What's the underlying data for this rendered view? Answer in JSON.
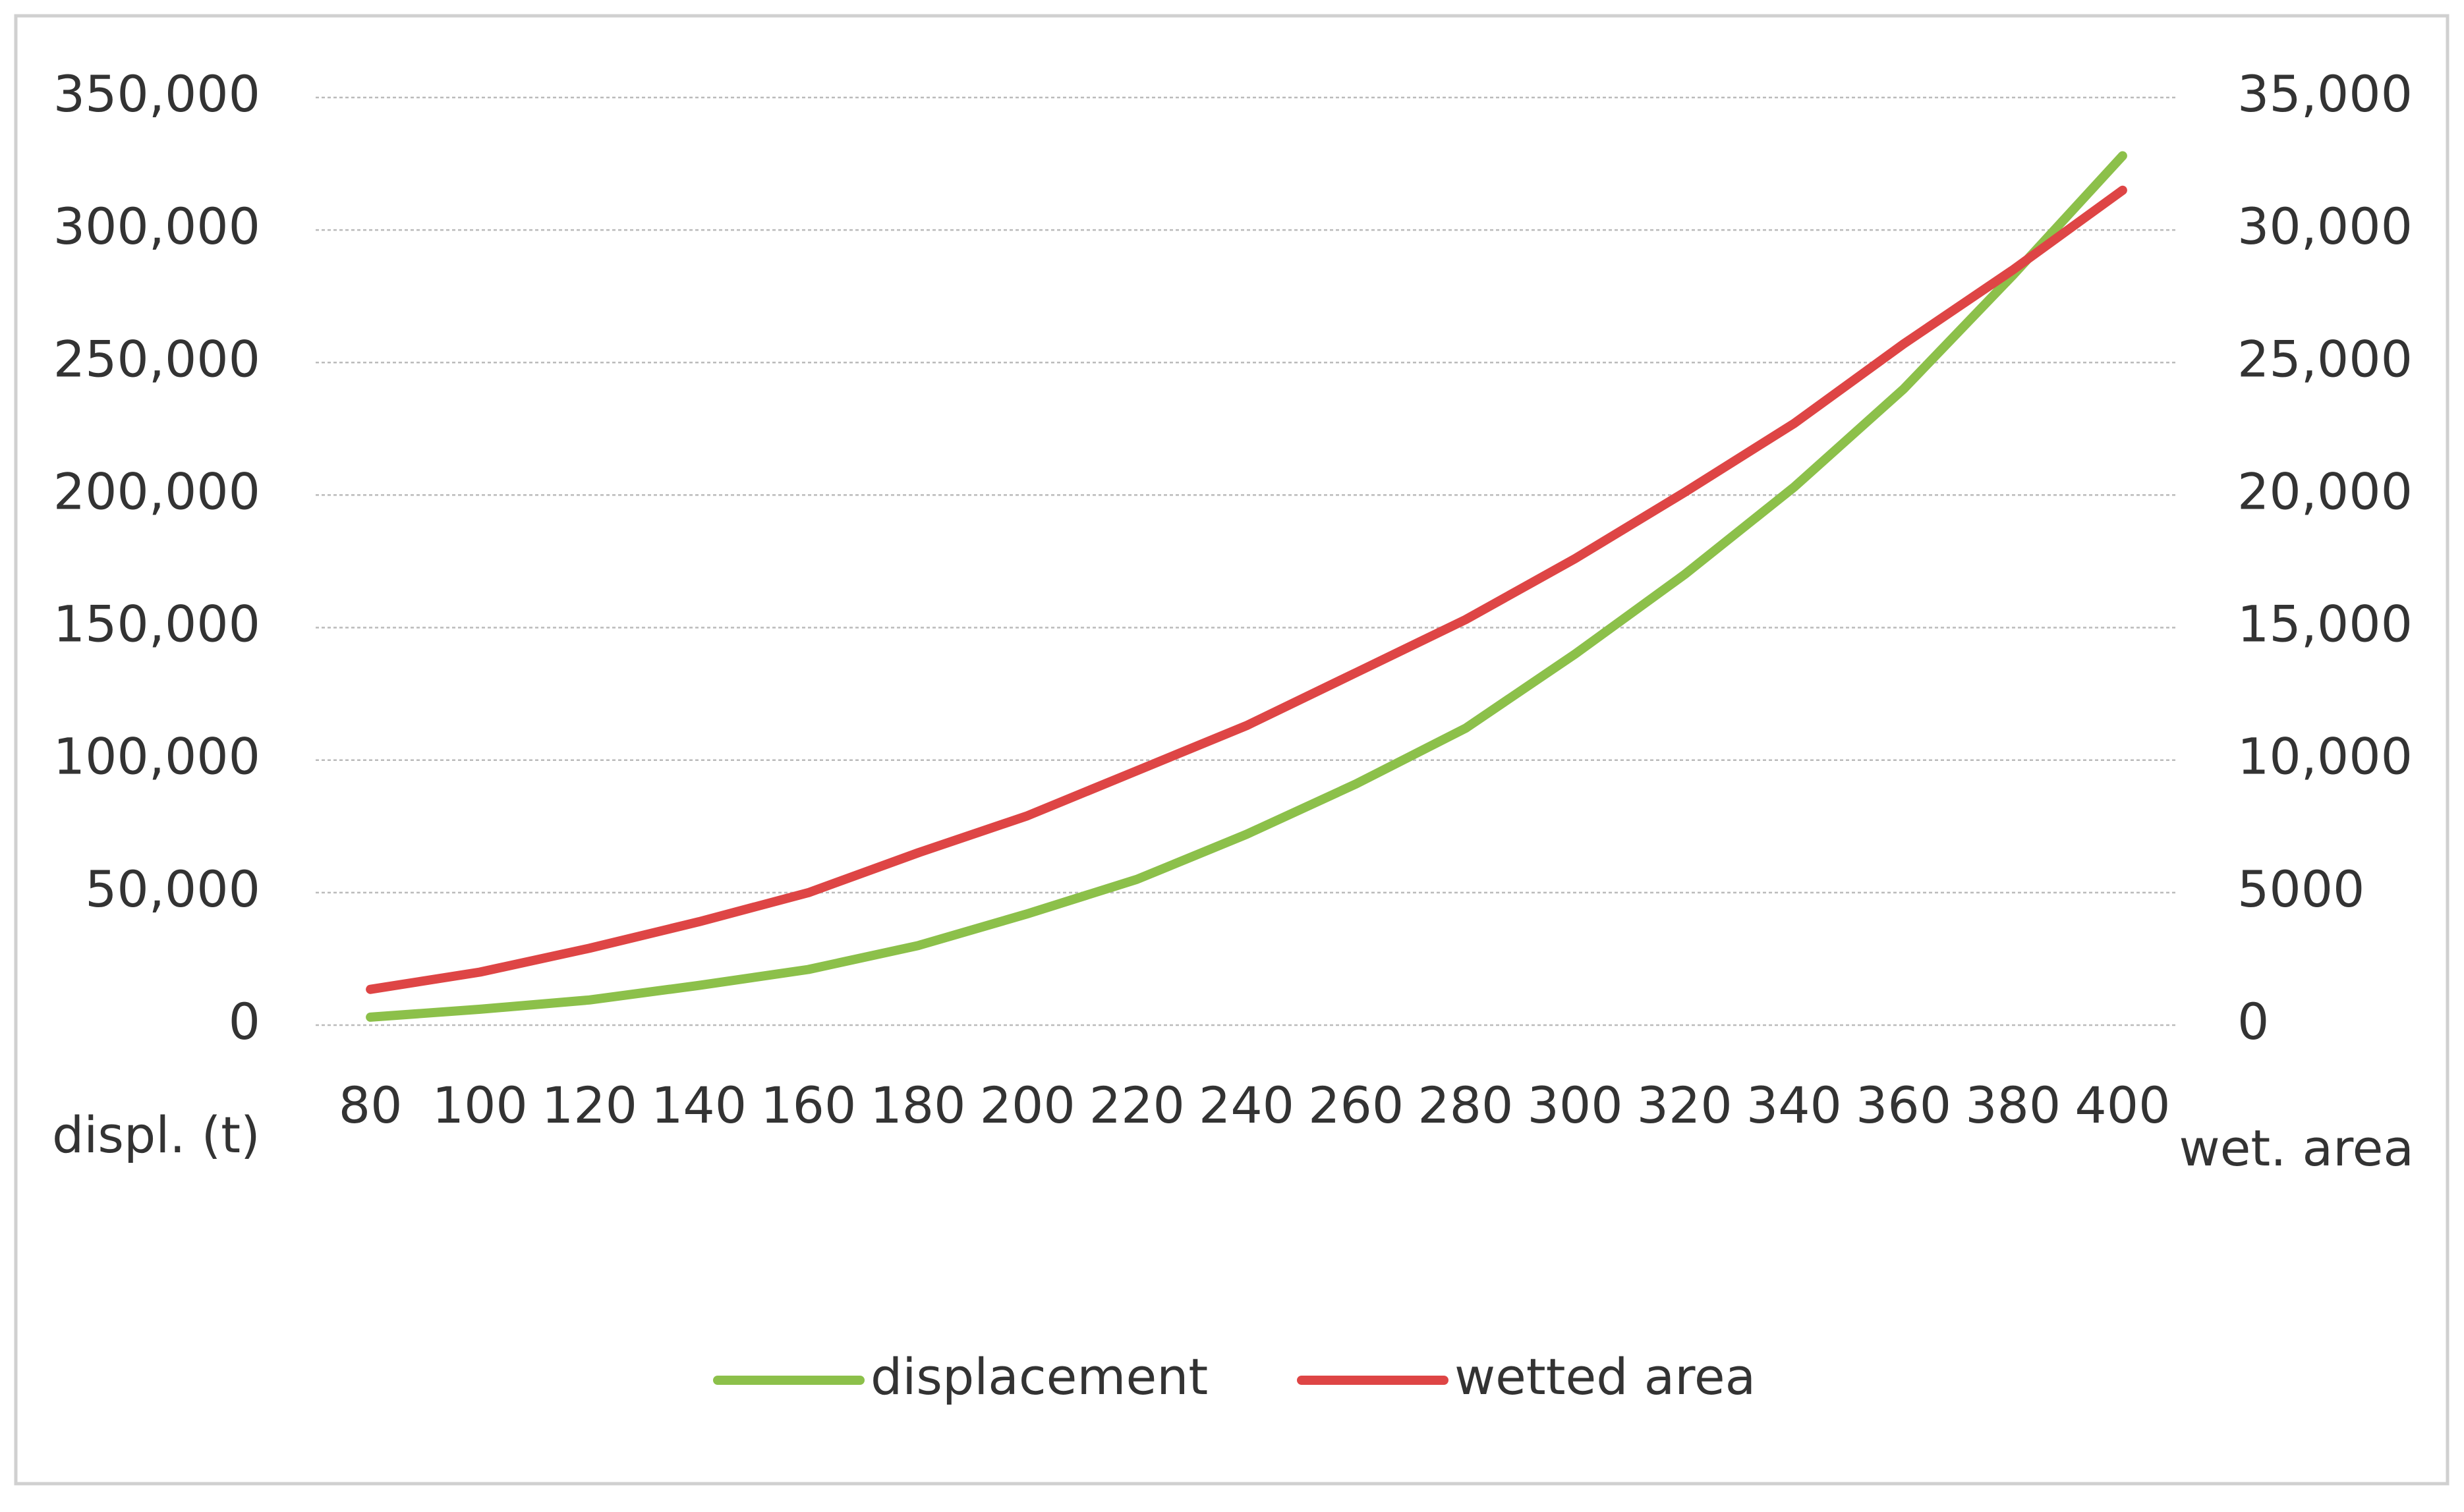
{
  "chart_data": {
    "type": "line",
    "categories": [
      "80",
      "100",
      "120",
      "140",
      "160",
      "180",
      "200",
      "220",
      "240",
      "260",
      "280",
      "300",
      "320",
      "340",
      "360",
      "380",
      "400"
    ],
    "series": [
      {
        "name": "displacement",
        "color": "#8cc04a",
        "axis": "y",
        "values": [
          3000,
          6000,
          9500,
          15000,
          21000,
          30000,
          42000,
          55000,
          72000,
          91000,
          112000,
          140000,
          170000,
          203000,
          240000,
          283000,
          328000
        ]
      },
      {
        "name": "wetted area",
        "color": "#de4545",
        "axis": "y2",
        "values": [
          1350,
          2000,
          2900,
          3900,
          5000,
          6500,
          7900,
          9600,
          11300,
          13300,
          15300,
          17600,
          20100,
          22700,
          25700,
          28500,
          31500
        ]
      }
    ],
    "y_label": "displ. (t)",
    "y2_label": "wet. area",
    "ylim": [
      0,
      350000
    ],
    "yticks": [
      0,
      {
        "value": 50000,
        "label": "50,000"
      },
      {
        "value": 100000,
        "label": "100,000"
      },
      {
        "value": 150000,
        "label": "150,000"
      },
      {
        "value": 200000,
        "label": "200,000"
      },
      {
        "value": 250000,
        "label": "250,000"
      },
      {
        "value": 300000,
        "label": "300,000"
      },
      {
        "value": 350000,
        "label": "350,000"
      }
    ],
    "y2lim": [
      0,
      35000
    ],
    "y2ticks": [
      0,
      5000,
      {
        "value": 10000,
        "label": "10,000"
      },
      {
        "value": 15000,
        "label": "15,000"
      },
      {
        "value": 20000,
        "label": "20,000"
      },
      {
        "value": 25000,
        "label": "25,000"
      },
      {
        "value": 30000,
        "label": "30,000"
      },
      {
        "value": 35000,
        "label": "35,000"
      }
    ],
    "grid": true,
    "legend": "bottom"
  }
}
